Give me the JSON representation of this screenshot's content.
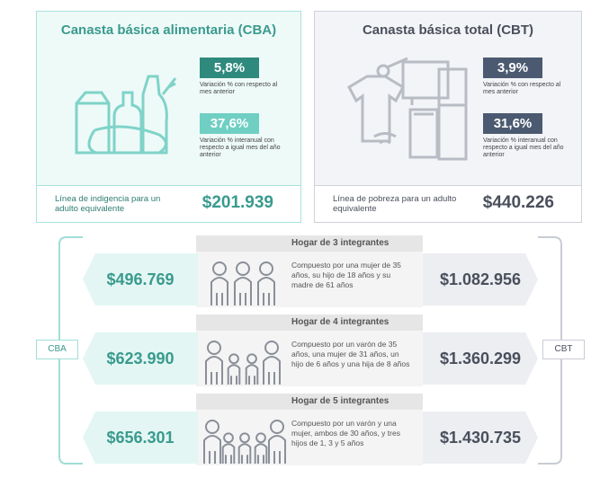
{
  "cba": {
    "title": "Canasta básica alimentaria (CBA)",
    "monthly": {
      "value": "5,8%",
      "label": "Variación % con respecto al mes anterior"
    },
    "annual": {
      "value": "37,6%",
      "label": "Variación % interanual con respecto a igual mes del año anterior"
    },
    "line_label": "Línea de indigencia para un adulto equivalente",
    "line_value": "$201.939"
  },
  "cbt": {
    "title": "Canasta básica total (CBT)",
    "monthly": {
      "value": "3,9%",
      "label": "Variación % con respecto al mes anterior"
    },
    "annual": {
      "value": "31,6%",
      "label": "Variación % interanual con respecto a igual mes del año anterior"
    },
    "line_label": "Línea de pobreza para un adulto equivalente",
    "line_value": "$440.226"
  },
  "side_labels": {
    "left": "CBA",
    "right": "CBT"
  },
  "households": [
    {
      "title": "Hogar de 3 integrantes",
      "description": "Compuesto por una mujer de 35 años, su hijo de 18 años y su madre de 61 años",
      "cba": "$496.769",
      "cbt": "$1.082.956"
    },
    {
      "title": "Hogar de 4 integrantes",
      "description": "Compuesto por un varón de 35 años, una mujer de 31 años, un hijo de 6 años y una hija de 8 años",
      "cba": "$623.990",
      "cbt": "$1.360.299"
    },
    {
      "title": "Hogar de 5 integrantes",
      "description": "Compuesto por un varón y una mujer, ambos de 30 años, y tres hijos de 1, 3 y 5 años",
      "cba": "$656.301",
      "cbt": "$1.430.735"
    }
  ]
}
